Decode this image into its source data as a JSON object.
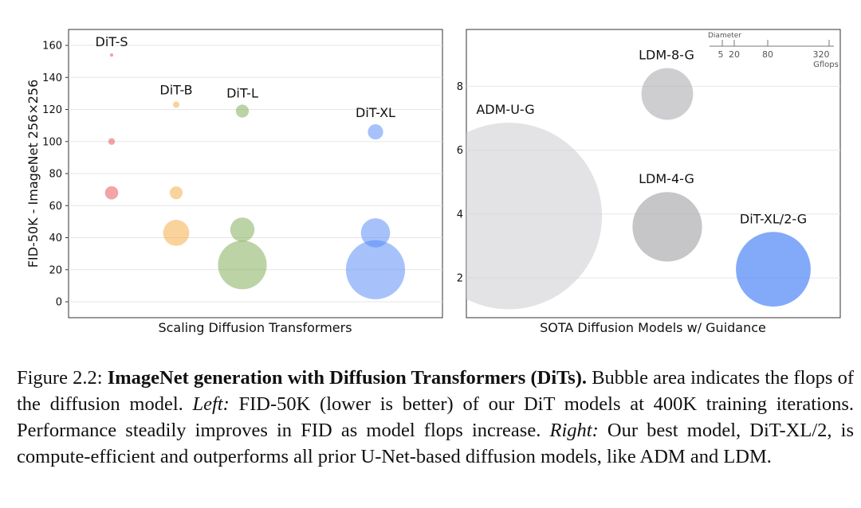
{
  "chart_data": [
    {
      "type": "scatter",
      "subtype": "bubble",
      "xlabel": "Scaling Diffusion Transformers",
      "ylabel": "FID-50K - ImageNet 256×256",
      "ylim": [
        -10,
        170
      ],
      "yticks": [
        0,
        20,
        40,
        60,
        80,
        100,
        120,
        140,
        160
      ],
      "grid": true,
      "categories": [
        "DiT-S",
        "DiT-B",
        "DiT-L",
        "DiT-XL"
      ],
      "series": [
        {
          "name": "DiT-S",
          "color": "#e8494d",
          "points": [
            {
              "y": 154,
              "flops": 0.4
            },
            {
              "y": 100,
              "flops": 1.5
            },
            {
              "y": 68,
              "flops": 6
            }
          ]
        },
        {
          "name": "DiT-B",
          "color": "#f3a53a",
          "points": [
            {
              "y": 123,
              "flops": 1.4
            },
            {
              "y": 68,
              "flops": 5.6
            },
            {
              "y": 43,
              "flops": 23
            }
          ]
        },
        {
          "name": "DiT-L",
          "color": "#79a84e",
          "points": [
            {
              "y": 119,
              "flops": 5.7
            },
            {
              "y": 45,
              "flops": 20
            },
            {
              "y": 23,
              "flops": 81
            }
          ]
        },
        {
          "name": "DiT-XL",
          "color": "#4f86f7",
          "points": [
            {
              "y": 106,
              "flops": 8
            },
            {
              "y": 43,
              "flops": 29
            },
            {
              "y": 20,
              "flops": 119
            }
          ]
        }
      ]
    },
    {
      "type": "scatter",
      "subtype": "bubble",
      "xlabel": "SOTA Diffusion Models w/ Guidance",
      "ylabel": "",
      "ylim": [
        1,
        9.8
      ],
      "yticks": [
        2,
        4,
        6,
        8
      ],
      "grid": true,
      "size_legend": {
        "title": "Diameter",
        "ticks": [
          "5",
          "20",
          "80",
          "320"
        ],
        "unit": "Gflops",
        "position": "top-right"
      },
      "points": [
        {
          "name": "ADM-U-G",
          "y": 3.94,
          "flops": 742,
          "color": "#d4d4d8"
        },
        {
          "name": "LDM-8-G",
          "y": 7.76,
          "flops": 57,
          "color": "#b4b4b8"
        },
        {
          "name": "LDM-4-G",
          "y": 3.6,
          "flops": 103,
          "color": "#a8a8ac"
        },
        {
          "name": "DiT-XL/2-G",
          "y": 2.27,
          "flops": 119,
          "color": "#4f86f7"
        }
      ]
    }
  ],
  "caption": {
    "label": "Figure 2.2:",
    "bold": "ImageNet generation with Diffusion Transformers (DiTs).",
    "t1": " Bubble area indicates the flops of the diffusion model. ",
    "left": "Left:",
    "t2": " FID-50K (lower is better) of our DiT models at 400K training iterations. Performance steadily improves in FID as model flops increase. ",
    "right": "Right:",
    "t3": " Our best model, DiT-XL/2, is compute-efficient and outperforms all prior U-Net-based diffusion models, like ADM and LDM."
  }
}
